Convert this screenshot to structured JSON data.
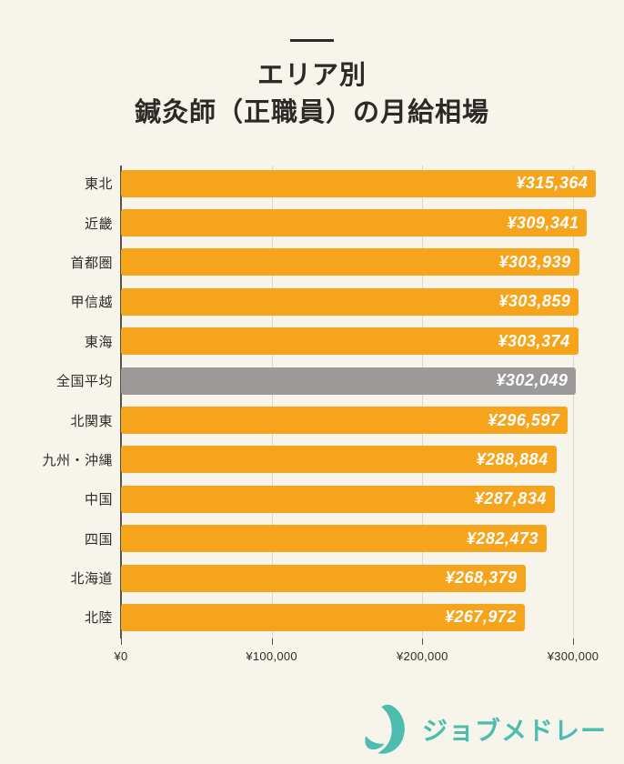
{
  "header": {
    "title_line1": "エリア別",
    "title_line2": "鍼灸師（正職員）の月給相場"
  },
  "chart_data": {
    "type": "bar",
    "orientation": "horizontal",
    "title": "エリア別 鍼灸師（正職員）の月給相場",
    "categories": [
      "東北",
      "近畿",
      "首都圏",
      "甲信越",
      "東海",
      "全国平均",
      "北関東",
      "九州・沖縄",
      "中国",
      "四国",
      "北海道",
      "北陸"
    ],
    "values": [
      315364,
      309341,
      303939,
      303859,
      303374,
      302049,
      296597,
      288884,
      287834,
      282473,
      268379,
      267972
    ],
    "value_labels": [
      "¥315,364",
      "¥309,341",
      "¥303,939",
      "¥303,859",
      "¥303,374",
      "¥302,049",
      "¥296,597",
      "¥288,884",
      "¥287,834",
      "¥282,473",
      "¥268,379",
      "¥267,972"
    ],
    "highlight_category": "全国平均",
    "xlabel": "",
    "ylabel": "",
    "x_tick_labels": [
      "¥0",
      "¥100,000",
      "¥200,000",
      "¥300,000"
    ],
    "x_tick_values": [
      0,
      100000,
      200000,
      300000
    ],
    "xlim": [
      0,
      334000
    ],
    "grid": true,
    "legend": false,
    "colors": {
      "bar": "#f6a41c",
      "highlight_bar": "#9b9a98",
      "value_text": "#ffffff",
      "background": "#f7f4eb",
      "gridline": "#dcd8cd",
      "axis_line": "#57534b",
      "text": "#2b2a27"
    }
  },
  "footer": {
    "brand": "ジョブメドレー",
    "brand_color": "#4dbdae",
    "logo_icon": "jobmedley-bird-icon"
  }
}
